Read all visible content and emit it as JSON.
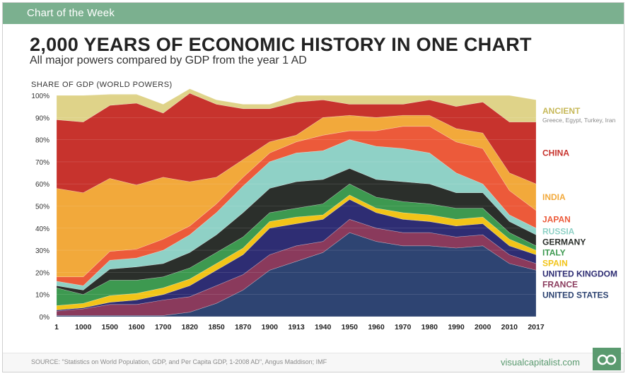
{
  "header": {
    "tag": "Chart of the Week"
  },
  "title": "2,000 YEARS OF ECONOMIC HISTORY IN ONE CHART",
  "subtitle": "All major powers compared by GDP from the year 1 AD",
  "footer": {
    "source": "SOURCE: \"Statistics on World Population, GDP, and Per Capita GDP, 1-2008 AD\", Angus Maddison; IMF",
    "brand": "visualcapitalist.com",
    "logo_icon": "visual-capitalist-logo-icon"
  },
  "chart_data": {
    "type": "area",
    "stacked": true,
    "ylabel": "SHARE OF GDP (WORLD POWERS)",
    "ylim": [
      0,
      100
    ],
    "yticks": [
      "0%",
      "10%",
      "20%",
      "30%",
      "40%",
      "50%",
      "60%",
      "70%",
      "80%",
      "90%",
      "100%"
    ],
    "grid": true,
    "legend": "right",
    "categories": [
      "1",
      "1000",
      "1500",
      "1600",
      "1700",
      "1820",
      "1850",
      "1870",
      "1900",
      "1913",
      "1940",
      "1950",
      "1960",
      "1970",
      "1980",
      "1990",
      "2000",
      "2010",
      "2017"
    ],
    "series": [
      {
        "name": "UNITED STATES",
        "color": "#2e4472",
        "values": [
          0.5,
          0.5,
          0.5,
          0.5,
          0.5,
          2,
          6,
          12,
          21,
          25,
          29,
          38,
          34,
          32,
          32,
          31,
          32,
          24,
          21
        ]
      },
      {
        "name": "FRANCE",
        "color": "#8a3a5c",
        "values": [
          2,
          3,
          5,
          5,
          7,
          7,
          8,
          7,
          7,
          7,
          5,
          6,
          6,
          6,
          6,
          5,
          5,
          4,
          3
        ]
      },
      {
        "name": "UNITED KINGDOM",
        "color": "#2e2d73",
        "values": [
          0.5,
          0.5,
          1,
          2,
          2.5,
          5,
          7,
          9,
          12,
          10,
          10,
          9,
          7,
          6,
          5,
          5,
          5,
          4,
          4
        ]
      },
      {
        "name": "SPAIN",
        "color": "#f2c418",
        "values": [
          2,
          2,
          3,
          3,
          3,
          3,
          3,
          3,
          3,
          3,
          2,
          2,
          2,
          3,
          3,
          3,
          3,
          3,
          2
        ]
      },
      {
        "name": "ITALY",
        "color": "#3d9950",
        "values": [
          8,
          4,
          7,
          6,
          5,
          5,
          5,
          5,
          4,
          4,
          5,
          5,
          5,
          5,
          5,
          5,
          4,
          3,
          2
        ]
      },
      {
        "name": "GERMANY",
        "color": "#2b2f2b",
        "values": [
          1,
          2,
          5,
          6,
          6,
          7,
          8,
          11,
          11,
          12,
          11,
          7,
          8,
          9,
          9,
          7,
          7,
          5,
          5
        ]
      },
      {
        "name": "RUSSIA",
        "color": "#8fd1c6",
        "values": [
          2,
          2,
          4,
          4,
          6,
          8,
          10,
          12,
          12,
          13,
          13,
          13,
          15,
          15,
          14,
          9,
          4,
          3,
          3
        ]
      },
      {
        "name": "JAPAN",
        "color": "#ec5a3a",
        "values": [
          2,
          4,
          4,
          4,
          5,
          4,
          4,
          4,
          4,
          5,
          7,
          4,
          7,
          10,
          12,
          14,
          16,
          11,
          8
        ]
      },
      {
        "name": "INDIA",
        "color": "#f2a93b",
        "values": [
          40,
          38,
          33,
          29,
          28,
          20,
          12,
          8,
          5,
          3,
          8,
          7,
          6,
          5,
          5,
          6,
          7,
          8,
          12
        ]
      },
      {
        "name": "CHINA",
        "color": "#c7332d",
        "values": [
          31,
          32,
          33,
          37,
          29,
          40,
          33,
          23,
          15,
          15,
          8,
          5,
          6,
          5,
          7,
          10,
          14,
          23,
          28
        ]
      },
      {
        "name": "ANCIENT",
        "sublabel": "Greece, Egypt, Turkey, Iran",
        "color": "#dfd389",
        "values": [
          11,
          12,
          5,
          4,
          4,
          2,
          2,
          2,
          2,
          3,
          2,
          4,
          4,
          4,
          2,
          5,
          3,
          12,
          10
        ]
      }
    ]
  }
}
